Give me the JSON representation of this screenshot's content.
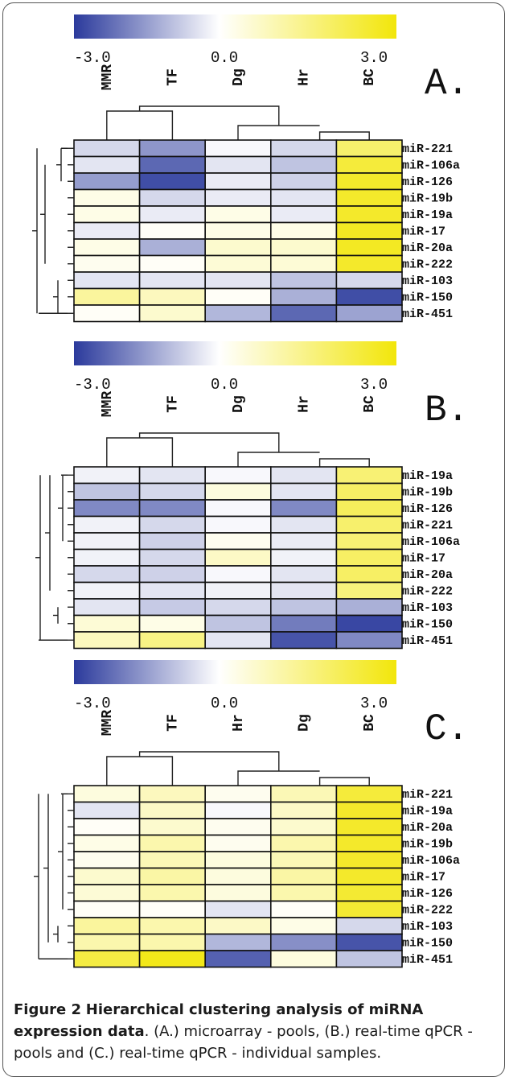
{
  "chart_data": [
    {
      "type": "heatmap",
      "panel_label": "A.",
      "scale": {
        "min": -3.0,
        "max": 3.0,
        "tick_labels": [
          "-3.0",
          "0.0",
          "3.0"
        ],
        "colors": {
          "low": "#2b3a9c",
          "mid": "#ffffff",
          "high": "#f2e60a"
        }
      },
      "columns": [
        "MMR",
        "TF",
        "Dg",
        "Hr",
        "BC"
      ],
      "rows": [
        "miR-221",
        "miR-106a",
        "miR-126",
        "miR-19b",
        "miR-19a",
        "miR-17",
        "miR-20a",
        "miR-222",
        "miR-103",
        "miR-150",
        "miR-451"
      ],
      "values": [
        [
          -0.6,
          -1.6,
          -0.1,
          -0.6,
          1.8
        ],
        [
          -0.4,
          -2.3,
          -0.4,
          -0.9,
          2.4
        ],
        [
          -1.5,
          -2.7,
          -0.3,
          -0.7,
          2.6
        ],
        [
          0.3,
          -0.6,
          -0.3,
          -0.4,
          2.6
        ],
        [
          0.3,
          -0.3,
          0.3,
          -0.3,
          2.6
        ],
        [
          -0.3,
          0.1,
          0.3,
          0.3,
          2.7
        ],
        [
          0.3,
          -1.2,
          0.6,
          0.6,
          2.7
        ],
        [
          0.2,
          0.1,
          0.5,
          0.5,
          2.6
        ],
        [
          -0.4,
          -0.4,
          -0.4,
          -0.9,
          -0.6
        ],
        [
          1.2,
          0.8,
          0.1,
          -1.2,
          -2.7
        ],
        [
          0.1,
          0.6,
          -1.1,
          -2.3,
          -1.4
        ]
      ]
    },
    {
      "type": "heatmap",
      "panel_label": "B.",
      "scale": {
        "min": -3.0,
        "max": 3.0,
        "tick_labels": [
          "-3.0",
          "0.0",
          "3.0"
        ],
        "colors": {
          "low": "#2b3a9c",
          "mid": "#ffffff",
          "high": "#f2e60a"
        }
      },
      "columns": [
        "MMR",
        "TF",
        "Dg",
        "Hr",
        "BC"
      ],
      "rows": [
        "miR-19a",
        "miR-19b",
        "miR-126",
        "miR-221",
        "miR-106a",
        "miR-17",
        "miR-20a",
        "miR-222",
        "miR-103",
        "miR-150",
        "miR-451"
      ],
      "values": [
        [
          -0.2,
          -0.4,
          -0.1,
          -0.4,
          1.7
        ],
        [
          -0.9,
          -0.6,
          0.4,
          -0.4,
          1.9
        ],
        [
          -1.8,
          -1.8,
          -0.1,
          -1.8,
          2.0
        ],
        [
          -0.2,
          -0.6,
          -0.1,
          -0.4,
          1.8
        ],
        [
          -0.2,
          -0.7,
          0.2,
          -0.3,
          1.7
        ],
        [
          -0.2,
          -0.6,
          0.7,
          -0.2,
          1.9
        ],
        [
          -0.6,
          -0.7,
          -0.1,
          -0.4,
          1.9
        ],
        [
          -0.2,
          -0.4,
          -0.2,
          -0.4,
          1.6
        ],
        [
          -0.4,
          -0.8,
          -0.6,
          -0.9,
          -1.2
        ],
        [
          0.5,
          0.3,
          -0.9,
          -2.0,
          -2.8
        ],
        [
          0.8,
          1.5,
          -0.4,
          -2.6,
          -1.8
        ]
      ]
    },
    {
      "type": "heatmap",
      "panel_label": "C.",
      "scale": {
        "min": -3.0,
        "max": 3.0,
        "tick_labels": [
          "-3.0",
          "0.0",
          "3.0"
        ],
        "colors": {
          "low": "#2b3a9c",
          "mid": "#ffffff",
          "high": "#f2e60a"
        }
      },
      "columns": [
        "MMR",
        "TF",
        "Hr",
        "Dg",
        "BC"
      ],
      "rows": [
        "miR-221",
        "miR-19a",
        "miR-20a",
        "miR-19b",
        "miR-106a",
        "miR-17",
        "miR-126",
        "miR-222",
        "miR-103",
        "miR-150",
        "miR-451"
      ],
      "values": [
        [
          0.4,
          0.8,
          0.2,
          0.9,
          2.4
        ],
        [
          -0.4,
          0.7,
          -0.1,
          0.7,
          2.6
        ],
        [
          0.1,
          0.6,
          0.2,
          0.6,
          2.6
        ],
        [
          0.3,
          1.0,
          0.2,
          1.0,
          2.6
        ],
        [
          0.2,
          0.9,
          0.4,
          0.9,
          2.6
        ],
        [
          0.6,
          1.1,
          0.4,
          1.1,
          2.6
        ],
        [
          0.5,
          1.0,
          0.4,
          1.0,
          2.5
        ],
        [
          0.1,
          0.1,
          -0.4,
          0.1,
          2.5
        ],
        [
          1.2,
          1.0,
          0.7,
          0.3,
          -0.6
        ],
        [
          1.0,
          1.0,
          -1.1,
          -1.7,
          -2.6
        ],
        [
          2.3,
          2.8,
          -2.4,
          0.4,
          -0.9
        ]
      ]
    }
  ],
  "caption": {
    "label": "Figure 2",
    "title": "Hierarchical clustering analysis of miRNA expression data",
    "text": ". (A.) microarray - pools, (B.) real-time qPCR - pools and (C.) real-time qPCR - individual samples."
  }
}
